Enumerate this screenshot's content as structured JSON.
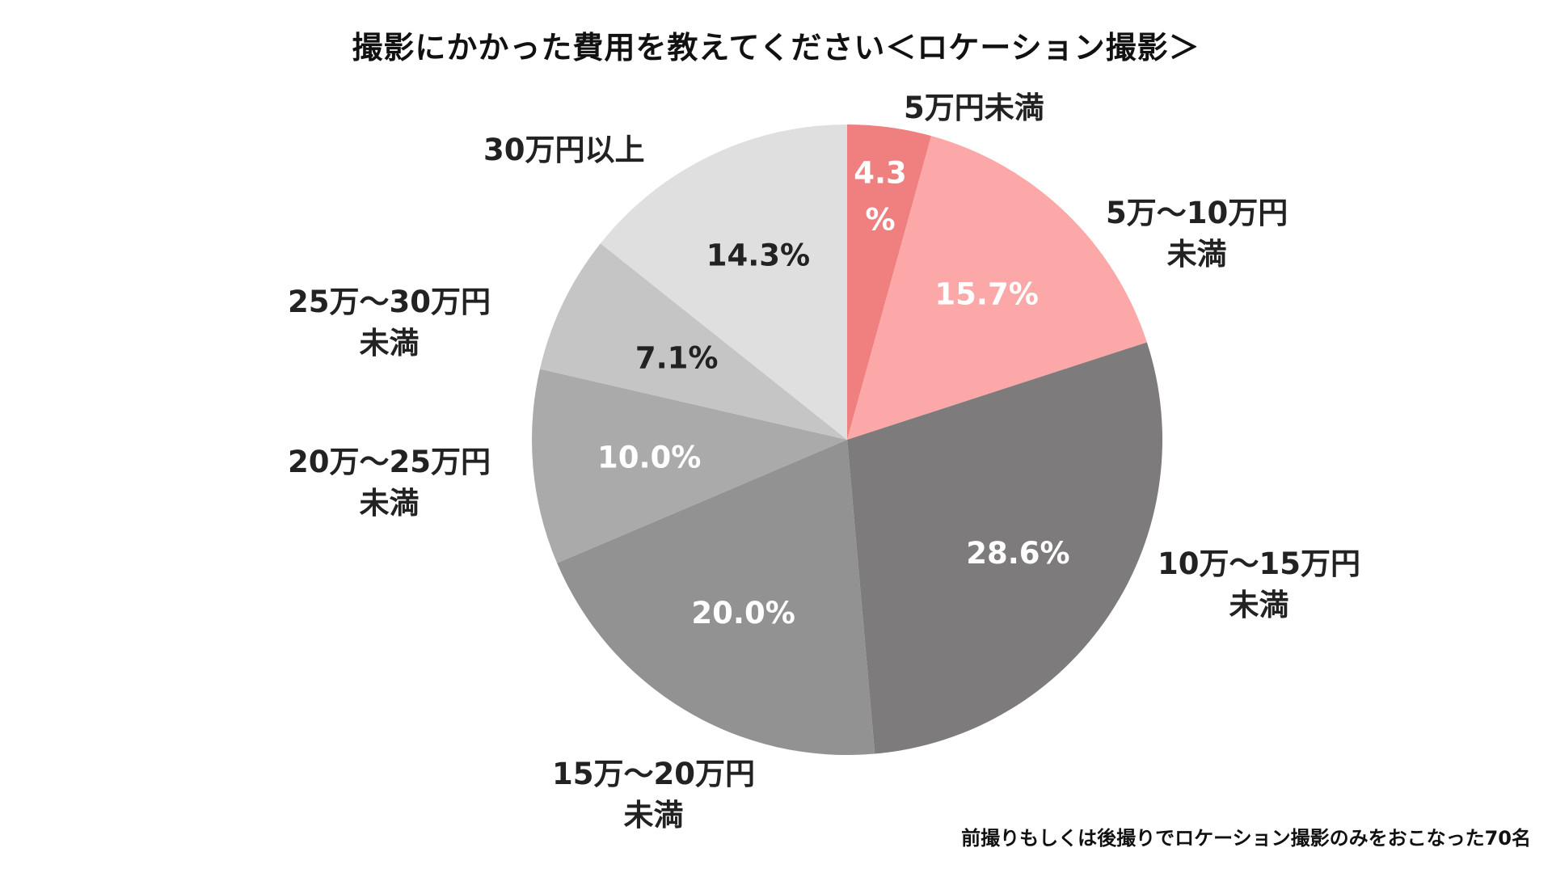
{
  "chart_data": {
    "type": "pie",
    "title": "撮影にかかった費用を教えてください＜ロケーション撮影＞",
    "footnote": "前撮りもしくは後撮りでロケーション撮影のみをおこなった70名",
    "slices": [
      {
        "label_lines": [
          "5万円未満"
        ],
        "value": 4.3,
        "value_label_lines": [
          "4.3",
          "%"
        ],
        "color": "#f08080",
        "text_color": "#ffffff"
      },
      {
        "label_lines": [
          "5万～10万円",
          "未満"
        ],
        "value": 15.7,
        "value_label_lines": [
          "15.7%"
        ],
        "color": "#fca8a8",
        "text_color": "#ffffff"
      },
      {
        "label_lines": [
          "10万～15万円",
          "未満"
        ],
        "value": 28.6,
        "value_label_lines": [
          "28.6%"
        ],
        "color": "#7d7b7c",
        "text_color": "#ffffff"
      },
      {
        "label_lines": [
          "15万～20万円",
          "未満"
        ],
        "value": 20.0,
        "value_label_lines": [
          "20.0%"
        ],
        "color": "#929292",
        "text_color": "#ffffff"
      },
      {
        "label_lines": [
          "20万～25万円",
          "未満"
        ],
        "value": 10.0,
        "value_label_lines": [
          "10.0%"
        ],
        "color": "#aaaaaa",
        "text_color": "#ffffff"
      },
      {
        "label_lines": [
          "25万～30万円",
          "未満"
        ],
        "value": 7.1,
        "value_label_lines": [
          "7.1%"
        ],
        "color": "#c6c5c6",
        "text_color": "#222222"
      },
      {
        "label_lines": [
          "30万円以上"
        ],
        "value": 14.3,
        "value_label_lines": [
          "14.3%"
        ],
        "color": "#dfdfe0",
        "text_color": "#222222"
      }
    ],
    "start_angle": "12 o'clock",
    "direction": "clockwise",
    "legend": "none"
  }
}
